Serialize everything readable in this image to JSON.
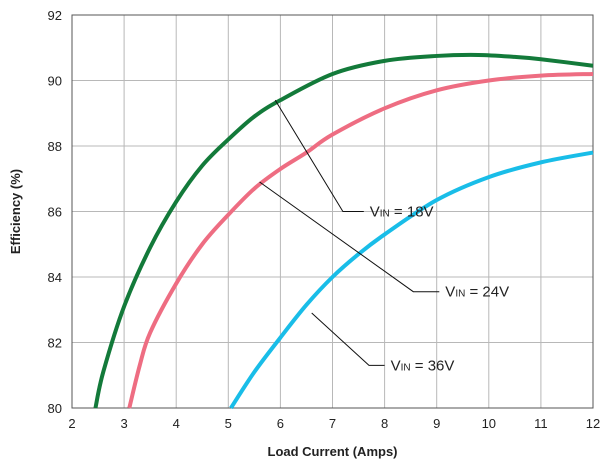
{
  "chart_data": {
    "type": "line",
    "title": "",
    "xlabel": "Load Current (Amps)",
    "ylabel": "Efficiency (%)",
    "xlim": [
      2,
      12
    ],
    "ylim": [
      80,
      92
    ],
    "x_ticks": [
      "2",
      "3",
      "4",
      "5",
      "6",
      "7",
      "8",
      "9",
      "10",
      "11",
      "12"
    ],
    "y_ticks": [
      "80",
      "82",
      "84",
      "86",
      "88",
      "90",
      "92"
    ],
    "grid": true,
    "series": [
      {
        "name": "VIN = 18V",
        "label_main": "V",
        "label_sub": "IN",
        "label_rest": " = 18V",
        "color": "#137a3a",
        "x": [
          2.45,
          2.6,
          3.0,
          3.5,
          4.0,
          4.5,
          5.0,
          5.5,
          6.0,
          7.0,
          8.0,
          9.0,
          9.8,
          10.5,
          11.0,
          12.0
        ],
        "y": [
          80.0,
          81.1,
          83.1,
          84.9,
          86.3,
          87.4,
          88.2,
          88.9,
          89.4,
          90.2,
          90.6,
          90.75,
          90.78,
          90.72,
          90.65,
          90.45
        ]
      },
      {
        "name": "VIN = 24V",
        "label_main": "V",
        "label_sub": "IN",
        "label_rest": " = 24V",
        "color": "#ee6d82",
        "x": [
          3.1,
          3.3,
          3.5,
          4.0,
          4.5,
          5.0,
          5.5,
          6.0,
          6.5,
          7.0,
          8.0,
          9.0,
          10.0,
          11.0,
          12.0
        ],
        "y": [
          80.0,
          81.3,
          82.3,
          83.8,
          85.0,
          85.9,
          86.7,
          87.3,
          87.8,
          88.35,
          89.15,
          89.7,
          90.0,
          90.15,
          90.2
        ]
      },
      {
        "name": "VIN = 36V",
        "label_main": "V",
        "label_sub": "IN",
        "label_rest": " = 36V",
        "color": "#19bde8",
        "x": [
          5.05,
          5.5,
          6.0,
          6.5,
          7.0,
          7.5,
          8.0,
          9.0,
          10.0,
          11.0,
          12.0
        ],
        "y": [
          80.0,
          81.1,
          82.15,
          83.15,
          84.0,
          84.7,
          85.3,
          86.35,
          87.05,
          87.5,
          87.8
        ]
      }
    ],
    "annotations": [
      {
        "series": 0,
        "from": [
          5.9,
          89.4
        ],
        "elbow": [
          7.2,
          86.0
        ],
        "end": [
          7.6,
          86.0
        ]
      },
      {
        "series": 1,
        "from": [
          5.6,
          86.9
        ],
        "elbow": [
          8.55,
          83.55
        ],
        "end": [
          9.05,
          83.55
        ]
      },
      {
        "series": 2,
        "from": [
          6.6,
          82.9
        ],
        "elbow": [
          7.7,
          81.3
        ],
        "end": [
          8.0,
          81.3
        ]
      }
    ]
  }
}
